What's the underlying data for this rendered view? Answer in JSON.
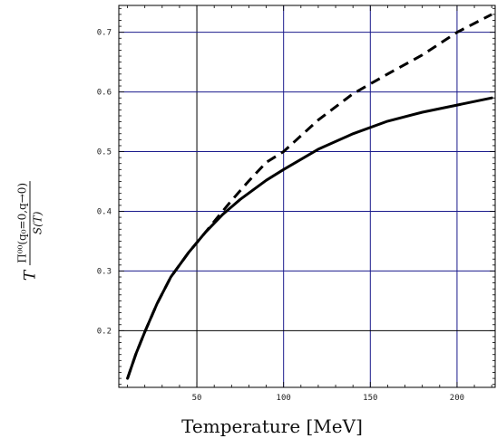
{
  "chart_data": {
    "type": "line",
    "title": "",
    "xlabel": "Temperature [MeV]",
    "ylabel": {
      "prefix": "T",
      "numerator": "Π⁰⁰(q₀=0,q→0)",
      "denominator": "S(T)"
    },
    "xlim": [
      5,
      222
    ],
    "ylim": [
      0.105,
      0.745
    ],
    "x_ticks": [
      50,
      100,
      150,
      200
    ],
    "y_ticks": [
      0.2,
      0.3,
      0.4,
      0.5,
      0.6,
      0.7
    ],
    "x_tick_labels": [
      "50",
      "100",
      "150",
      "200"
    ],
    "y_tick_labels": [
      "0.2",
      "0.3",
      "0.4",
      "0.5",
      "0.6",
      "0.7"
    ],
    "grid": true,
    "colors": {
      "grid": "#1a1a8c",
      "grid_origin": "#000000",
      "curve": "#000000"
    },
    "series": [
      {
        "style": "solid",
        "x": [
          10,
          15,
          20,
          27,
          35,
          45,
          55,
          65,
          75,
          90,
          100,
          120,
          140,
          160,
          180,
          200,
          220
        ],
        "y": [
          0.12,
          0.162,
          0.198,
          0.245,
          0.29,
          0.33,
          0.365,
          0.395,
          0.42,
          0.452,
          0.47,
          0.504,
          0.53,
          0.551,
          0.566,
          0.578,
          0.59
        ]
      },
      {
        "style": "dashed",
        "x": [
          10,
          15,
          20,
          27,
          35,
          45,
          55,
          60,
          70,
          80,
          90,
          100,
          120,
          140,
          160,
          180,
          200,
          220
        ],
        "y": [
          0.12,
          0.162,
          0.198,
          0.245,
          0.29,
          0.33,
          0.365,
          0.383,
          0.418,
          0.451,
          0.482,
          0.5,
          0.553,
          0.597,
          0.63,
          0.662,
          0.7,
          0.73
        ]
      }
    ]
  }
}
